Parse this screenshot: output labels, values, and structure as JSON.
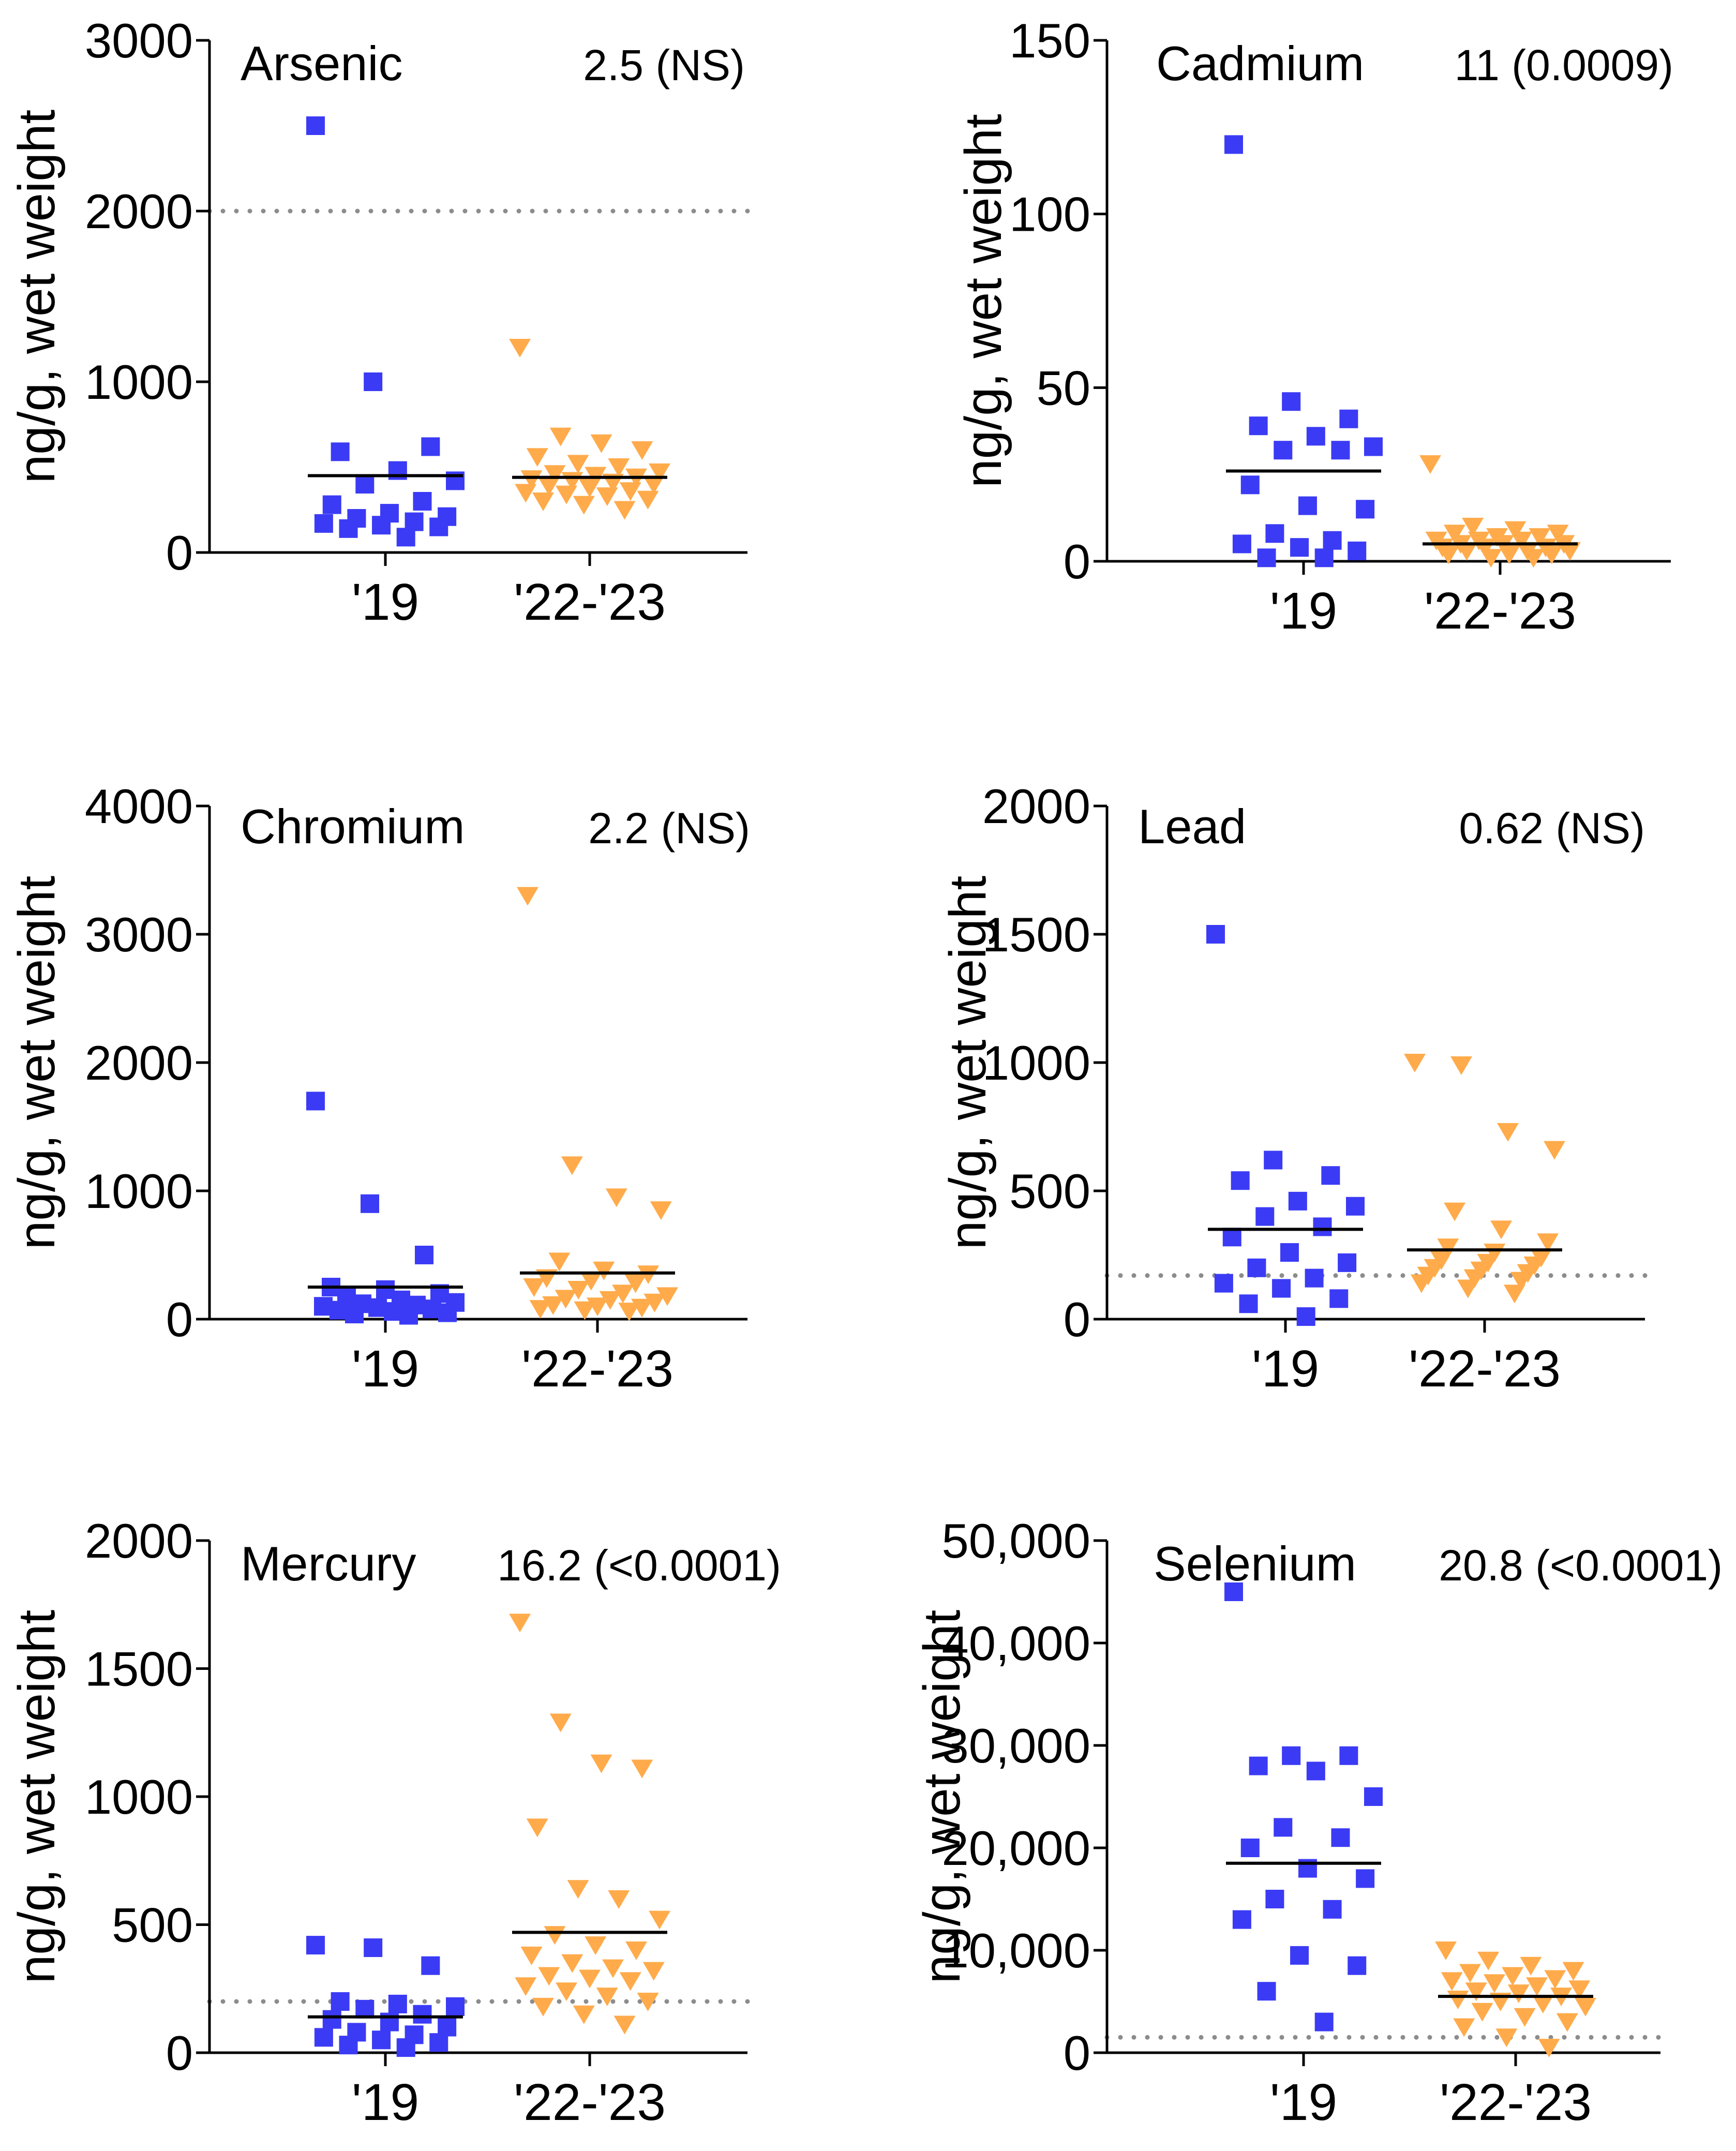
{
  "figure": {
    "colors": {
      "group_2019": "#3b3bf5",
      "group_2022_2023": "#ffab4b",
      "axis": "#000000",
      "reference_line": "#8c8c8c"
    },
    "markers": {
      "group_2019": "square",
      "group_2022_2023": "triangle-down"
    }
  },
  "chart_data": [
    {
      "type": "scatter",
      "title": "Arsenic",
      "stat": "2.5 (NS)",
      "ylabel": "ng/g, wet weight",
      "categories": [
        "'19",
        "'22-'23"
      ],
      "ylim": [
        0,
        3000
      ],
      "yticks": [
        0,
        1000,
        2000,
        3000
      ],
      "ytick_labels": [
        "0",
        "1000",
        "2000",
        "3000"
      ],
      "reference_line": 2000,
      "series": [
        {
          "name": "'19",
          "marker": "square",
          "color": "#3b3bf5",
          "values": [
            2500,
            1000,
            620,
            590,
            480,
            420,
            400,
            300,
            280,
            230,
            210,
            200,
            180,
            170,
            160,
            150,
            140,
            90
          ],
          "mean": 450
        },
        {
          "name": "'22-'23",
          "marker": "triangle-down",
          "color": "#ffab4b",
          "values": [
            1200,
            680,
            640,
            600,
            560,
            520,
            500,
            470,
            460,
            450,
            440,
            430,
            420,
            410,
            400,
            390,
            380,
            360,
            350,
            340,
            330,
            310,
            300,
            280,
            250
          ],
          "mean": 440
        }
      ]
    },
    {
      "type": "scatter",
      "title": "Cadmium",
      "stat": "11 (0.0009)",
      "ylabel": "ng/g, wet weight",
      "categories": [
        "'19",
        "'22-'23"
      ],
      "ylim": [
        0,
        150
      ],
      "yticks": [
        0,
        50,
        100,
        150
      ],
      "ytick_labels": [
        "0",
        "50",
        "100",
        "150"
      ],
      "reference_line": null,
      "series": [
        {
          "name": "'19",
          "marker": "square",
          "color": "#3b3bf5",
          "values": [
            120,
            46,
            41,
            39,
            36,
            33,
            32,
            32,
            22,
            16,
            15,
            8,
            6,
            5,
            4,
            3,
            1,
            1
          ],
          "mean": 26
        },
        {
          "name": "'22-'23",
          "marker": "triangle-down",
          "color": "#ffab4b",
          "values": [
            28,
            10,
            9,
            8,
            8,
            7,
            7,
            6,
            6,
            6,
            5,
            5,
            5,
            4,
            4,
            4,
            3,
            3,
            3,
            2,
            2,
            2,
            1,
            1
          ],
          "mean": 5
        }
      ]
    },
    {
      "type": "scatter",
      "title": "Chromium",
      "stat": "2.2 (NS)",
      "ylabel": "ng/g, wet weight",
      "categories": [
        "'19",
        "'22-'23"
      ],
      "ylim": [
        0,
        4000
      ],
      "yticks": [
        0,
        1000,
        2000,
        3000,
        4000
      ],
      "ytick_labels": [
        "0",
        "1000",
        "2000",
        "3000",
        "4000"
      ],
      "reference_line": null,
      "series": [
        {
          "name": "'19",
          "marker": "square",
          "color": "#3b3bf5",
          "values": [
            1700,
            900,
            500,
            250,
            230,
            200,
            180,
            150,
            130,
            120,
            110,
            100,
            90,
            80,
            70,
            60,
            50,
            40,
            30
          ],
          "mean": 250
        },
        {
          "name": "'22-'23",
          "marker": "triangle-down",
          "color": "#ffab4b",
          "values": [
            3300,
            1200,
            950,
            850,
            450,
            380,
            350,
            320,
            300,
            280,
            250,
            230,
            200,
            180,
            160,
            150,
            130,
            110,
            100,
            90,
            80,
            70,
            60
          ],
          "mean": 360
        }
      ]
    },
    {
      "type": "scatter",
      "title": "Lead",
      "stat": "0.62 (NS)",
      "ylabel": "ng/g, wet weight",
      "categories": [
        "'19",
        "'22-'23"
      ],
      "ylim": [
        0,
        2000
      ],
      "yticks": [
        0,
        500,
        1000,
        1500,
        2000
      ],
      "ytick_labels": [
        "0",
        "500",
        "1000",
        "1500",
        "2000"
      ],
      "reference_line": 170,
      "series": [
        {
          "name": "'19",
          "marker": "square",
          "color": "#3b3bf5",
          "values": [
            1500,
            620,
            560,
            540,
            460,
            440,
            400,
            360,
            320,
            260,
            220,
            200,
            160,
            140,
            120,
            80,
            60,
            10
          ],
          "mean": 350
        },
        {
          "name": "'22-'23",
          "marker": "triangle-down",
          "color": "#ffab4b",
          "values": [
            1000,
            990,
            730,
            660,
            420,
            350,
            300,
            280,
            260,
            240,
            230,
            220,
            210,
            200,
            190,
            180,
            170,
            160,
            150,
            140,
            120,
            100
          ],
          "mean": 270
        }
      ]
    },
    {
      "type": "scatter",
      "title": "Mercury",
      "stat": "16.2 (<0.0001)",
      "ylabel": "ng/g, wet weight",
      "categories": [
        "'19",
        "'22-'23"
      ],
      "ylim": [
        0,
        2000
      ],
      "yticks": [
        0,
        500,
        1000,
        1500,
        2000
      ],
      "ytick_labels": [
        "0",
        "500",
        "1000",
        "1500",
        "2000"
      ],
      "reference_line": 200,
      "series": [
        {
          "name": "'19",
          "marker": "square",
          "color": "#3b3bf5",
          "values": [
            420,
            410,
            340,
            200,
            190,
            180,
            170,
            150,
            130,
            120,
            100,
            80,
            70,
            60,
            50,
            40,
            30,
            20
          ],
          "mean": 140
        },
        {
          "name": "'22-'23",
          "marker": "triangle-down",
          "color": "#ffab4b",
          "values": [
            1680,
            1290,
            1130,
            1110,
            880,
            640,
            600,
            520,
            460,
            420,
            400,
            380,
            350,
            330,
            320,
            300,
            290,
            280,
            260,
            240,
            220,
            200,
            180,
            150,
            110
          ],
          "mean": 470
        }
      ]
    },
    {
      "type": "scatter",
      "title": "Selenium",
      "stat": "20.8 (<0.0001)",
      "ylabel": "ng/g, wet weight",
      "categories": [
        "'19",
        "'22-'23"
      ],
      "ylim": [
        0,
        50000
      ],
      "yticks": [
        0,
        10000,
        20000,
        30000,
        40000,
        50000
      ],
      "ytick_labels": [
        "0",
        "10,000",
        "20,000",
        "30,000",
        "40,000",
        "50,000"
      ],
      "reference_line": 1500,
      "series": [
        {
          "name": "'19",
          "marker": "square",
          "color": "#3b3bf5",
          "values": [
            45000,
            29000,
            29000,
            28000,
            27500,
            25000,
            22000,
            21000,
            20000,
            18000,
            17000,
            15000,
            14000,
            13000,
            9500,
            8500,
            6000,
            3000
          ],
          "mean": 18500
        },
        {
          "name": "'22-'23",
          "marker": "triangle-down",
          "color": "#ffab4b",
          "values": [
            10000,
            9000,
            8500,
            8000,
            7800,
            7500,
            7200,
            7000,
            6800,
            6500,
            6200,
            6000,
            5800,
            5500,
            5200,
            5000,
            4800,
            4500,
            4000,
            3500,
            3000,
            2500,
            1500,
            500
          ],
          "mean": 5500
        }
      ]
    }
  ]
}
